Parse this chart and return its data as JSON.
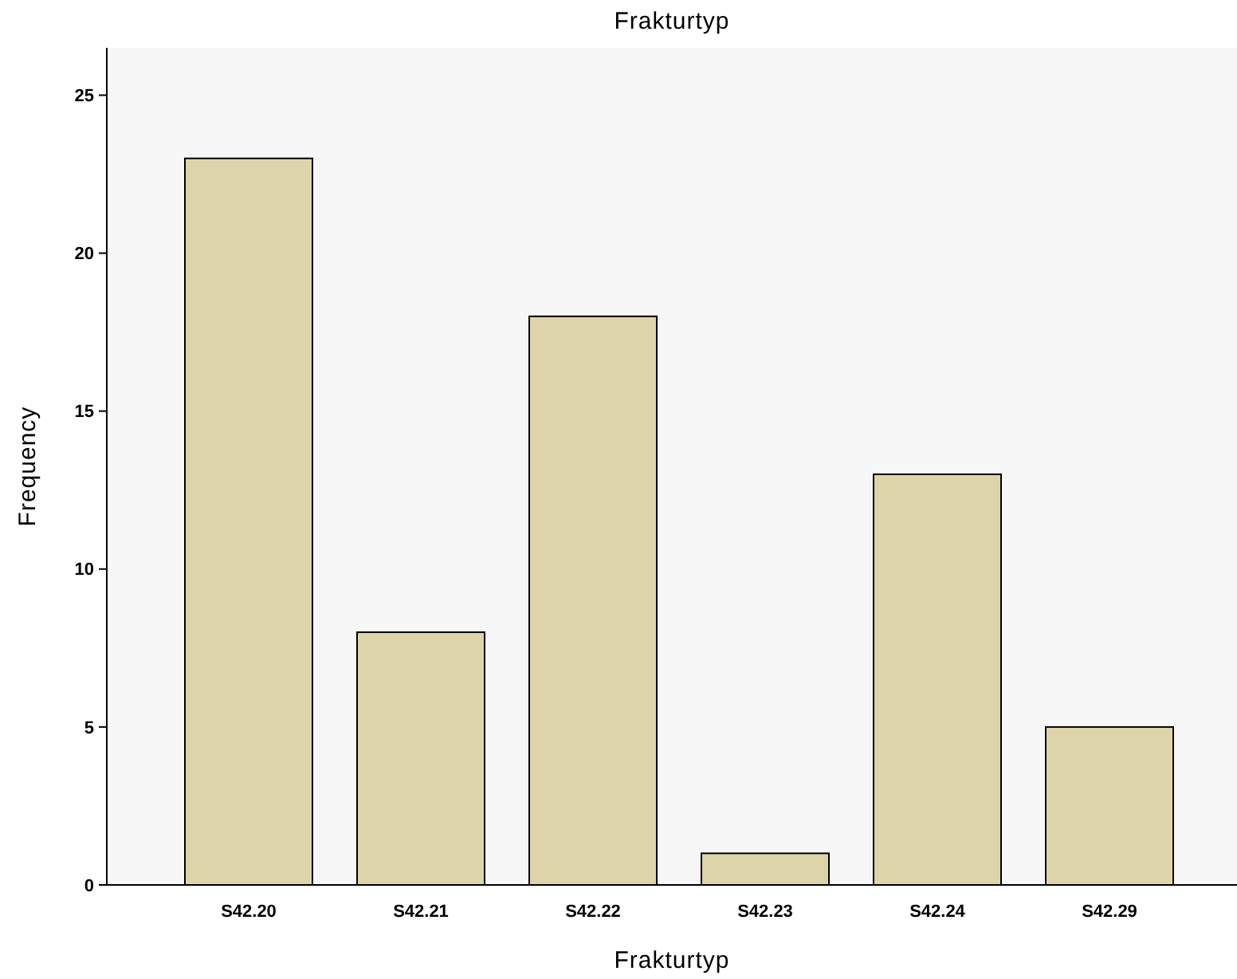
{
  "chart_data": {
    "type": "bar",
    "title": "Frakturtyp",
    "xlabel": "Frakturtyp",
    "ylabel": "Frequency",
    "categories": [
      "S42.20",
      "S42.21",
      "S42.22",
      "S42.23",
      "S42.24",
      "S42.29"
    ],
    "values": [
      23,
      8,
      18,
      1,
      13,
      5
    ],
    "color": "#ddd5a9",
    "ylim": [
      0,
      26.5
    ],
    "yticks": [
      0,
      5,
      10,
      15,
      20,
      25
    ],
    "grid": false
  }
}
